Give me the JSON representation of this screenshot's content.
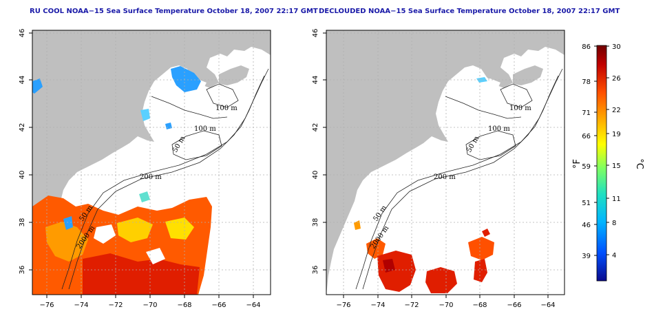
{
  "maps": [
    {
      "title": "RU COOL NOAA−15 Sea Surface Temperature October 18, 2007 22:17 GMT",
      "x_ticks": [
        "−76",
        "−74",
        "−72",
        "−70",
        "−68",
        "−66",
        "−64"
      ],
      "y_ticks": [
        "46",
        "44",
        "42",
        "40",
        "38",
        "36"
      ],
      "contour_labels": [
        "100 m",
        "100 m",
        "50 m",
        "200 m",
        "50 m",
        "2000 m"
      ]
    },
    {
      "title": "DECLOUDED NOAA−15 Sea Surface Temperature October 18, 2007 22:17 GMT",
      "x_ticks": [
        "−76",
        "−74",
        "−72",
        "−70",
        "−68",
        "−66",
        "−64"
      ],
      "y_ticks": [
        "46",
        "44",
        "42",
        "40",
        "38",
        "36"
      ],
      "contour_labels": [
        "100 m",
        "100 m",
        "50 m",
        "200 m",
        "50 m",
        "2000 m"
      ]
    }
  ],
  "colorbar": {
    "fahrenheit_ticks": [
      "86",
      "78",
      "71",
      "66",
      "59",
      "51",
      "46",
      "39"
    ],
    "celsius_ticks": [
      "30",
      "26",
      "22",
      "19",
      "15",
      "11",
      "8",
      "4"
    ],
    "fahrenheit_unit": "°F",
    "celsius_unit": "°C",
    "colors": [
      "#0a0a8c",
      "#0050ff",
      "#00b4ff",
      "#20e0c0",
      "#80ff60",
      "#ffff00",
      "#ffb000",
      "#ff5000",
      "#c00000",
      "#700000"
    ]
  },
  "map_colors": {
    "land": "#bfbfbf",
    "water": "#ffffff",
    "grid": "#b0b0b0"
  }
}
